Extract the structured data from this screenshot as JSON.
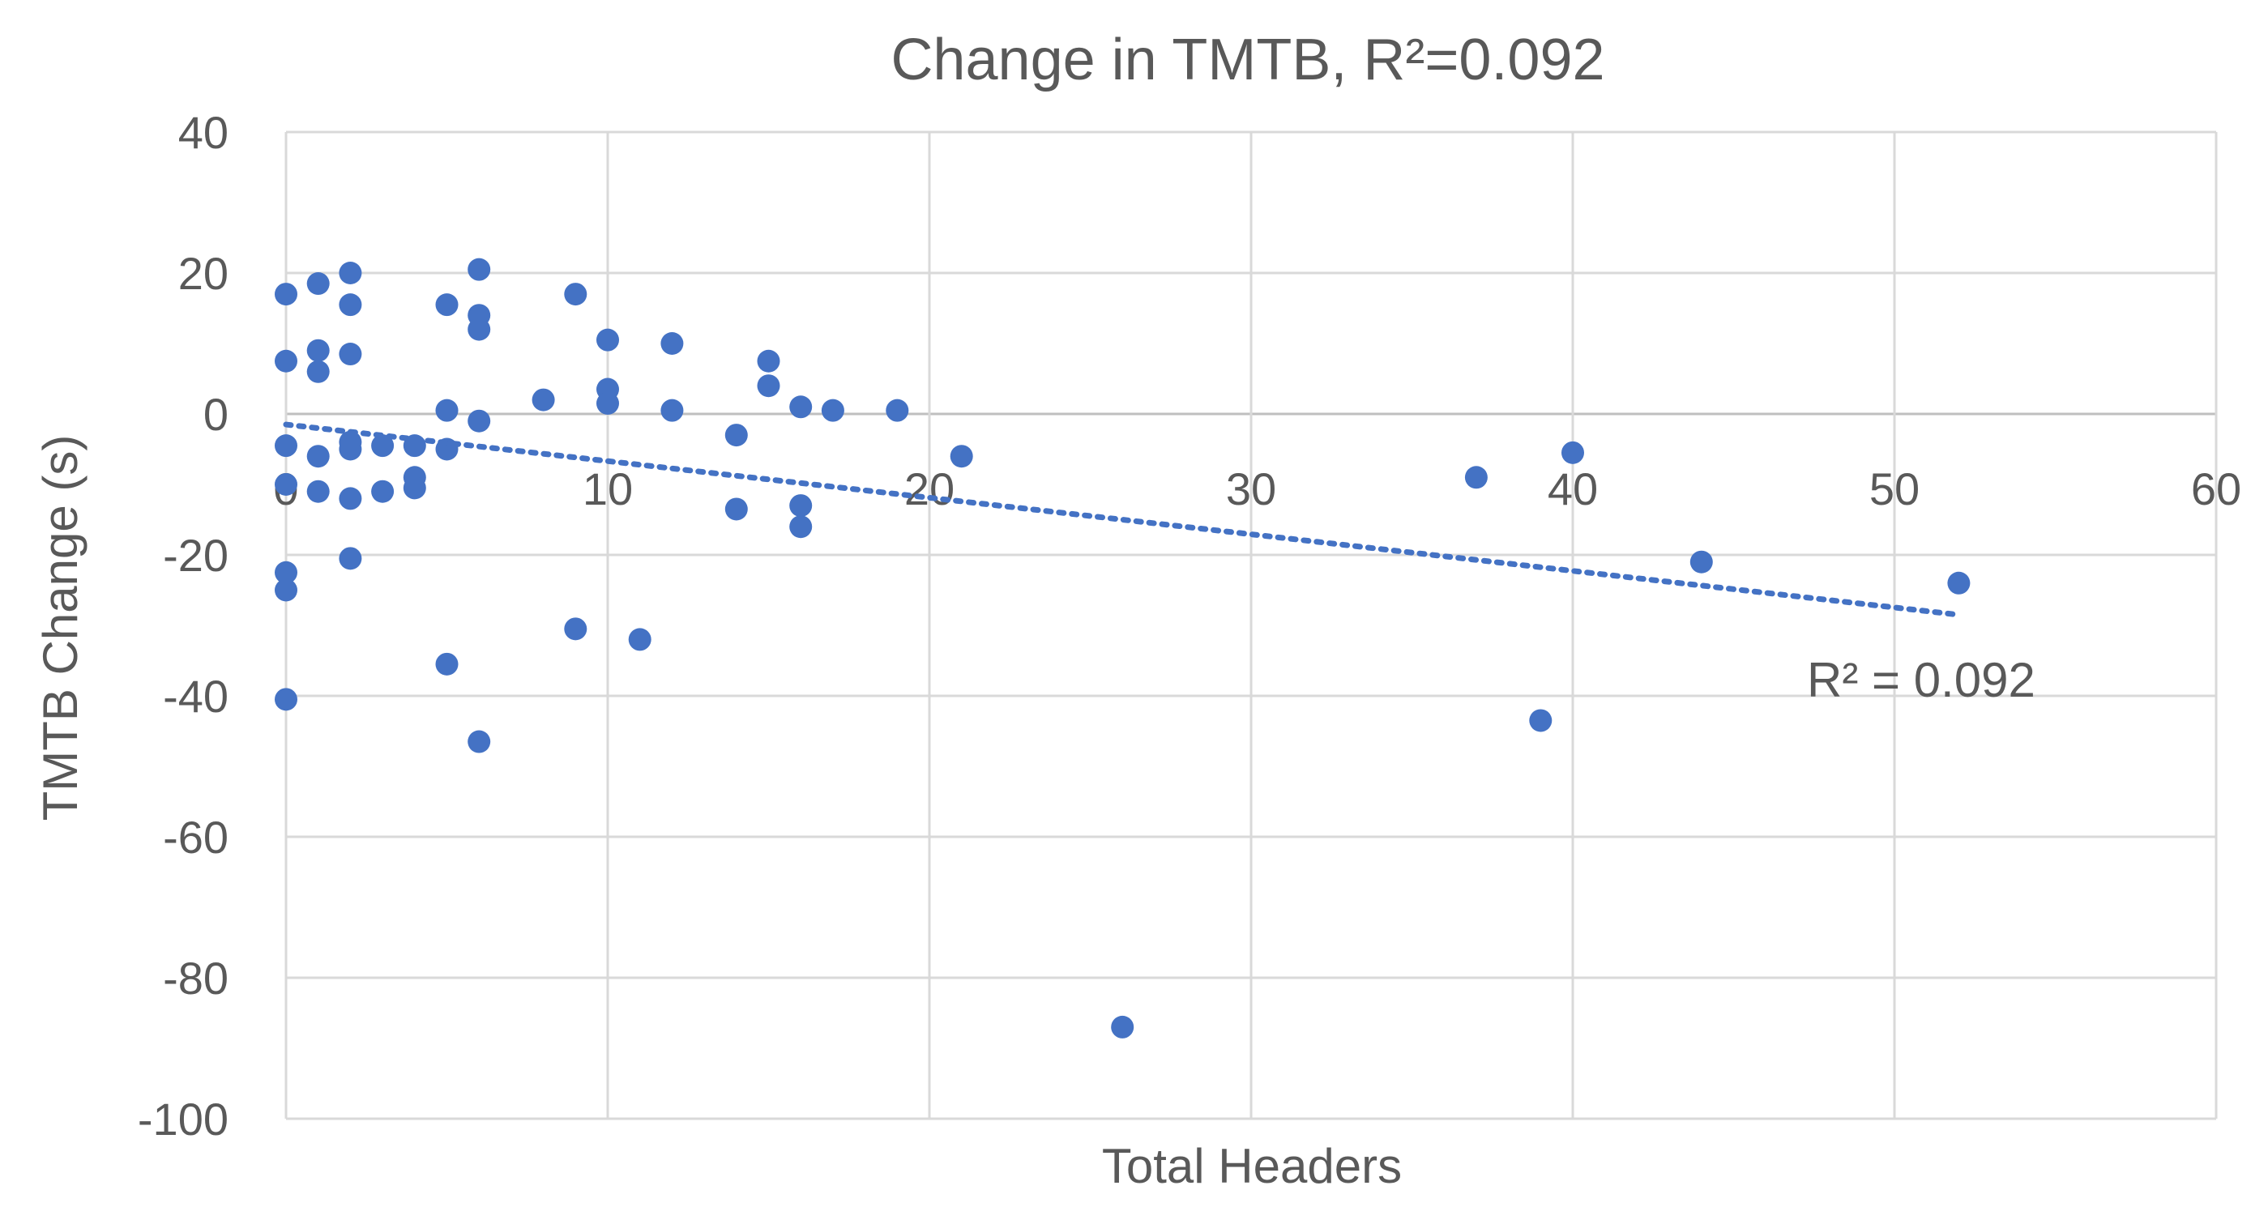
{
  "chart_data": {
    "type": "scatter",
    "title": "Change in TMTB, R²=0.092",
    "xlabel": "Total Headers",
    "ylabel": "TMTB Change (s)",
    "xlim": [
      0,
      60
    ],
    "ylim": [
      -100,
      40
    ],
    "x_ticks": [
      0,
      10,
      20,
      30,
      40,
      50,
      60
    ],
    "y_ticks": [
      40,
      20,
      0,
      -20,
      -40,
      -60,
      -80,
      -100
    ],
    "grid": true,
    "legend": "none",
    "point_color": "#4472c4",
    "series": [
      {
        "points": [
          {
            "x": 0,
            "y": 17
          },
          {
            "x": 0,
            "y": 7.5
          },
          {
            "x": 0,
            "y": -4.5
          },
          {
            "x": 0,
            "y": -10
          },
          {
            "x": 0,
            "y": -22.5
          },
          {
            "x": 0,
            "y": -25
          },
          {
            "x": 0,
            "y": -40.5
          },
          {
            "x": 1,
            "y": 18.5
          },
          {
            "x": 1,
            "y": 9
          },
          {
            "x": 1,
            "y": 6
          },
          {
            "x": 1,
            "y": -6
          },
          {
            "x": 1,
            "y": -11
          },
          {
            "x": 2,
            "y": 20
          },
          {
            "x": 2,
            "y": 15.5
          },
          {
            "x": 2,
            "y": 8.5
          },
          {
            "x": 2,
            "y": -4
          },
          {
            "x": 2,
            "y": -5
          },
          {
            "x": 2,
            "y": -12
          },
          {
            "x": 2,
            "y": -20.5
          },
          {
            "x": 3,
            "y": -4.5
          },
          {
            "x": 3,
            "y": -11
          },
          {
            "x": 4,
            "y": -4.5
          },
          {
            "x": 4,
            "y": -9
          },
          {
            "x": 4,
            "y": -10.5
          },
          {
            "x": 5,
            "y": 15.5
          },
          {
            "x": 5,
            "y": 0.5
          },
          {
            "x": 5,
            "y": -5
          },
          {
            "x": 5,
            "y": -35.5
          },
          {
            "x": 6,
            "y": 20.5
          },
          {
            "x": 6,
            "y": 14
          },
          {
            "x": 6,
            "y": 12
          },
          {
            "x": 6,
            "y": -1
          },
          {
            "x": 6,
            "y": -46.5
          },
          {
            "x": 8,
            "y": 2
          },
          {
            "x": 9,
            "y": 17
          },
          {
            "x": 9,
            "y": -30.5
          },
          {
            "x": 10,
            "y": 10.5
          },
          {
            "x": 10,
            "y": 3.5
          },
          {
            "x": 10,
            "y": 1.5
          },
          {
            "x": 11,
            "y": -32
          },
          {
            "x": 12,
            "y": 10
          },
          {
            "x": 12,
            "y": 0.5
          },
          {
            "x": 14,
            "y": -3
          },
          {
            "x": 14,
            "y": -13.5
          },
          {
            "x": 15,
            "y": 7.5
          },
          {
            "x": 15,
            "y": 4
          },
          {
            "x": 16,
            "y": 1
          },
          {
            "x": 16,
            "y": -13
          },
          {
            "x": 16,
            "y": -16
          },
          {
            "x": 17,
            "y": 0.5
          },
          {
            "x": 19,
            "y": 0.5
          },
          {
            "x": 21,
            "y": -6
          },
          {
            "x": 26,
            "y": -87
          },
          {
            "x": 37,
            "y": -9
          },
          {
            "x": 39,
            "y": -43.5
          },
          {
            "x": 40,
            "y": -5.5
          },
          {
            "x": 44,
            "y": -21
          },
          {
            "x": 52,
            "y": -24
          }
        ]
      }
    ],
    "trendline": {
      "type": "linear",
      "x_range": [
        0,
        52
      ],
      "y_at_start": -1.5,
      "y_at_end": -28.5,
      "style": "dotted",
      "label": "R² = 0.092"
    }
  }
}
